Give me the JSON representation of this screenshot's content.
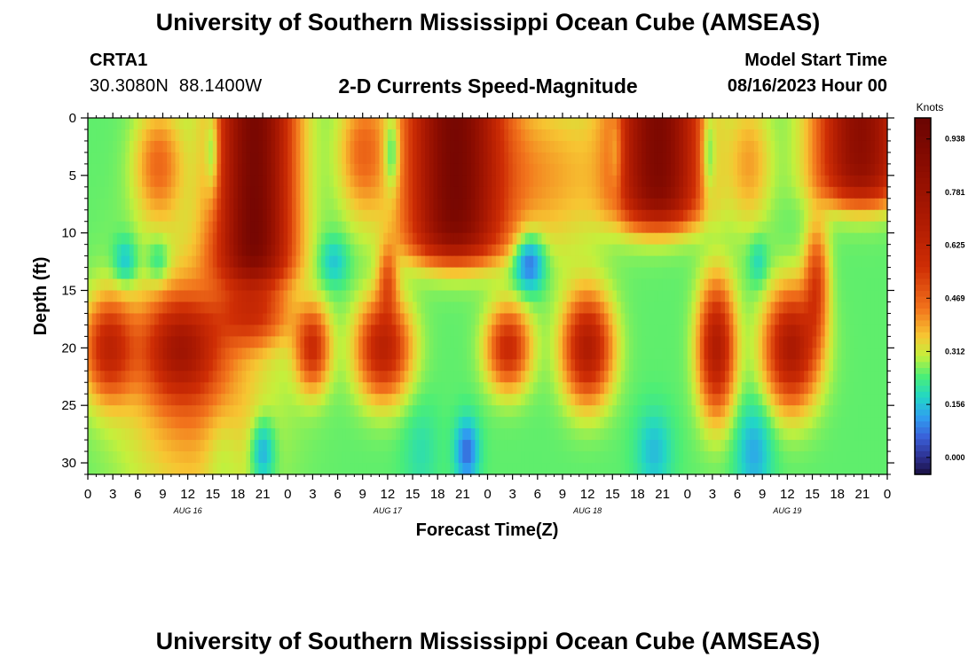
{
  "header": {
    "title": "University of Southern Mississippi Ocean Cube (AMSEAS)",
    "station": "CRTA1",
    "coordinates": "30.3080N  88.1400W",
    "subtitle": "2-D Currents Speed-Magnitude",
    "model_start_label": "Model Start Time",
    "model_start_value": "08/16/2023 Hour 00"
  },
  "footer": {
    "title": "University of Southern Mississippi Ocean Cube (AMSEAS)"
  },
  "chart_data": {
    "type": "heatmap",
    "title": "2-D Currents Speed-Magnitude",
    "xlabel": "Forecast Time(Z)",
    "ylabel": "Depth (ft)",
    "x_tick_labels": [
      "0",
      "3",
      "6",
      "9",
      "12",
      "15",
      "18",
      "21",
      "0",
      "3",
      "6",
      "9",
      "12",
      "15",
      "18",
      "21",
      "0",
      "3",
      "6",
      "9",
      "12",
      "15",
      "18",
      "21",
      "0",
      "3",
      "6",
      "9",
      "12",
      "15",
      "18",
      "21",
      "0"
    ],
    "x_range_hours": [
      0,
      96
    ],
    "date_labels": [
      {
        "label": "AUG 16",
        "hour": 12
      },
      {
        "label": "AUG 17",
        "hour": 36
      },
      {
        "label": "AUG 18",
        "hour": 60
      },
      {
        "label": "AUG 19",
        "hour": 84
      }
    ],
    "y_tick_labels": [
      "0",
      "5",
      "10",
      "15",
      "20",
      "25",
      "30"
    ],
    "y_range_ft": [
      0,
      31
    ],
    "y_inverted": true,
    "colorbar": {
      "title": "Knots",
      "tick_labels": [
        "0.938",
        "0.781",
        "0.625",
        "0.469",
        "0.312",
        "0.156",
        "0.000"
      ],
      "tick_values": [
        0.938,
        0.781,
        0.625,
        0.469,
        0.312,
        0.156,
        0.0
      ],
      "range": [
        -0.05,
        1.0
      ]
    },
    "grid": "0.5h x 1ft cells (approx)",
    "features": [
      {
        "h": 20.0,
        "d": 0,
        "ht": 3.2,
        "dt": 14,
        "v": 0.68,
        "kind": "surface"
      },
      {
        "h": 44.0,
        "d": 0,
        "ht": 4.0,
        "dt": 12,
        "v": 0.68,
        "kind": "surface"
      },
      {
        "h": 68.5,
        "d": 0,
        "ht": 3.6,
        "dt": 9,
        "v": 0.66,
        "kind": "surface"
      },
      {
        "h": 92.8,
        "d": 0,
        "ht": 3.6,
        "dt": 7,
        "v": 0.6,
        "kind": "surface"
      },
      {
        "h": 2.5,
        "d": 20,
        "ht": 2.0,
        "dt": 3.0,
        "v": 0.35,
        "kind": "blob"
      },
      {
        "h": 11.0,
        "d": 20,
        "ht": 3.0,
        "dt": 3.0,
        "v": 0.35,
        "kind": "blob"
      },
      {
        "h": 13.0,
        "d": 23,
        "ht": 6.0,
        "dt": 8.0,
        "v": 0.18,
        "kind": "blob"
      },
      {
        "h": 20.0,
        "d": 17,
        "ht": 3.0,
        "dt": 2.0,
        "v": 0.25,
        "kind": "blob"
      },
      {
        "h": 27.0,
        "d": 20,
        "ht": 1.4,
        "dt": 2.5,
        "v": 0.32,
        "kind": "blob"
      },
      {
        "h": 35.5,
        "d": 20,
        "ht": 2.2,
        "dt": 3.0,
        "v": 0.4,
        "kind": "blob"
      },
      {
        "h": 50.5,
        "d": 20,
        "ht": 1.8,
        "dt": 2.5,
        "v": 0.34,
        "kind": "blob"
      },
      {
        "h": 60.0,
        "d": 20,
        "ht": 2.0,
        "dt": 3.2,
        "v": 0.44,
        "kind": "blob"
      },
      {
        "h": 75.5,
        "d": 20,
        "ht": 1.5,
        "dt": 4.0,
        "v": 0.44,
        "kind": "blob"
      },
      {
        "h": 84.5,
        "d": 20,
        "ht": 2.2,
        "dt": 3.5,
        "v": 0.46,
        "kind": "blob"
      },
      {
        "h": 87.5,
        "d": 14,
        "ht": 1.0,
        "dt": 3.5,
        "v": 0.25,
        "kind": "blob"
      },
      {
        "h": 36.0,
        "d": 14,
        "ht": 0.8,
        "dt": 2.0,
        "v": 0.2,
        "kind": "blob"
      },
      {
        "h": 8.5,
        "d": 4,
        "ht": 2.0,
        "dt": 3.5,
        "v": 0.2,
        "kind": "blob"
      },
      {
        "h": 33.0,
        "d": 3,
        "ht": 2.0,
        "dt": 4.0,
        "v": 0.2,
        "kind": "blob"
      },
      {
        "h": 55.0,
        "d": 5,
        "ht": 5.0,
        "dt": 5.0,
        "v": 0.14,
        "kind": "blob"
      },
      {
        "h": 79.5,
        "d": 4,
        "ht": 1.8,
        "dt": 4.0,
        "v": 0.14,
        "kind": "blob"
      },
      {
        "h": 15.0,
        "d": 3,
        "ht": 0.6,
        "dt": 3.0,
        "v": -0.16,
        "kind": "blob"
      },
      {
        "h": 36.5,
        "d": 3,
        "ht": 0.7,
        "dt": 2.5,
        "v": -0.16,
        "kind": "blob"
      },
      {
        "h": 63.5,
        "d": 3,
        "ht": 0.6,
        "dt": 3.0,
        "v": -0.12,
        "kind": "blob"
      },
      {
        "h": 74.5,
        "d": 3,
        "ht": 0.6,
        "dt": 3.0,
        "v": -0.14,
        "kind": "blob"
      },
      {
        "h": 4.5,
        "d": 12.5,
        "ht": 1.0,
        "dt": 1.5,
        "v": -0.12,
        "kind": "blob"
      },
      {
        "h": 8.5,
        "d": 12.5,
        "ht": 1.0,
        "dt": 1.5,
        "v": -0.1,
        "kind": "blob"
      },
      {
        "h": 29.5,
        "d": 12.5,
        "ht": 1.2,
        "dt": 1.5,
        "v": -0.1,
        "kind": "blob"
      },
      {
        "h": 53.0,
        "d": 12.5,
        "ht": 1.3,
        "dt": 1.8,
        "v": -0.22,
        "kind": "blob"
      },
      {
        "h": 80.5,
        "d": 12.5,
        "ht": 0.8,
        "dt": 1.5,
        "v": -0.08,
        "kind": "blob"
      },
      {
        "h": 21.0,
        "d": 29,
        "ht": 1.0,
        "dt": 2.0,
        "v": -0.16,
        "kind": "blob"
      },
      {
        "h": 45.5,
        "d": 29,
        "ht": 1.0,
        "dt": 2.0,
        "v": -0.18,
        "kind": "blob"
      },
      {
        "h": 68.0,
        "d": 29,
        "ht": 1.5,
        "dt": 2.5,
        "v": -0.1,
        "kind": "blob"
      },
      {
        "h": 80.0,
        "d": 29,
        "ht": 1.5,
        "dt": 3.0,
        "v": -0.12,
        "kind": "blob"
      },
      {
        "h": 16.0,
        "d": 29,
        "ht": 1.5,
        "dt": 3.0,
        "v": -0.06,
        "kind": "blob"
      },
      {
        "h": 40.0,
        "d": 29,
        "ht": 1.5,
        "dt": 3.0,
        "v": -0.05,
        "kind": "blob"
      }
    ],
    "colormap_stops": [
      {
        "v": -0.05,
        "color": "#1a1040"
      },
      {
        "v": 0.0,
        "color": "#2c2f8e"
      },
      {
        "v": 0.06,
        "color": "#3a5fd8"
      },
      {
        "v": 0.12,
        "color": "#2f9ff0"
      },
      {
        "v": 0.18,
        "color": "#22d7c5"
      },
      {
        "v": 0.24,
        "color": "#4bee76"
      },
      {
        "v": 0.3,
        "color": "#c4f03c"
      },
      {
        "v": 0.36,
        "color": "#f7c532"
      },
      {
        "v": 0.44,
        "color": "#f2731c"
      },
      {
        "v": 0.56,
        "color": "#cf2e05"
      },
      {
        "v": 0.7,
        "color": "#ad1a02"
      },
      {
        "v": 0.86,
        "color": "#8a0c01"
      },
      {
        "v": 1.0,
        "color": "#6a0402"
      }
    ]
  }
}
